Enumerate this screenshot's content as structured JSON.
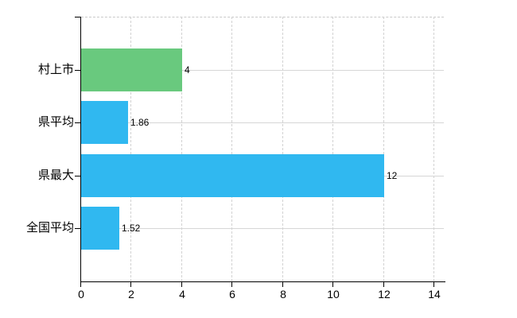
{
  "chart_data": {
    "type": "bar",
    "orientation": "horizontal",
    "title": "",
    "xlabel": "",
    "ylabel": "",
    "categories": [
      "村上市",
      "県平均",
      "県最大",
      "全国平均"
    ],
    "values": [
      4,
      1.86,
      12,
      1.52
    ],
    "value_labels": [
      "4",
      "1.86",
      "12",
      "1.52"
    ],
    "bar_colors": [
      "#69c97e",
      "#30b8f0",
      "#30b8f0",
      "#30b8f0"
    ],
    "x_ticks": [
      0,
      2,
      4,
      6,
      8,
      10,
      12,
      14
    ],
    "xlim": [
      0,
      14.4
    ],
    "grid": true,
    "gridline_style": {
      "vertical": "dashed",
      "horizontal": "solid"
    },
    "legend_position": "none",
    "colors": {
      "bar_green": "#69c97e",
      "bar_blue": "#30b8f0",
      "grid": "#d6d6d6",
      "axis": "#000000",
      "text": "#000000",
      "background": "#ffffff"
    }
  }
}
